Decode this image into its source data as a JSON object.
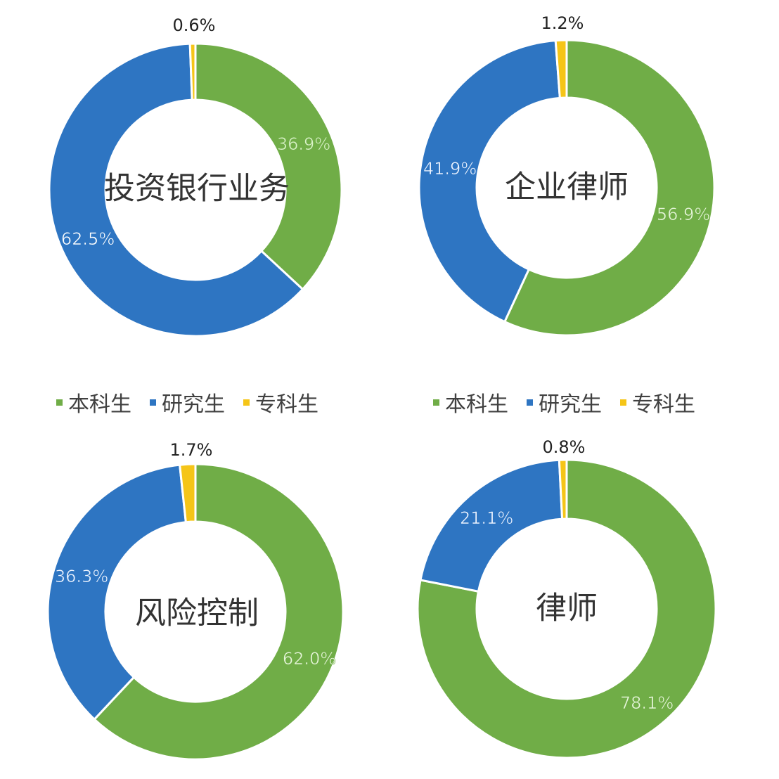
{
  "colors": {
    "本科生": "#70AD47",
    "研究生": "#2E75C2",
    "专科生": "#F5C518"
  },
  "legend": {
    "items": [
      "本科生",
      "研究生",
      "专科生"
    ]
  },
  "chart_data": [
    {
      "type": "pie",
      "title": "投资银行业务",
      "categories": [
        "本科生",
        "研究生",
        "专科生"
      ],
      "values": [
        36.9,
        62.5,
        0.6
      ],
      "labels": [
        "36.9%",
        "62.5%",
        "0.6%"
      ]
    },
    {
      "type": "pie",
      "title": "企业律师",
      "categories": [
        "本科生",
        "研究生",
        "专科生"
      ],
      "values": [
        56.9,
        41.9,
        1.2
      ],
      "labels": [
        "56.9%",
        "41.9%",
        "1.2%"
      ]
    },
    {
      "type": "pie",
      "title": "风险控制",
      "categories": [
        "本科生",
        "研究生",
        "专科生"
      ],
      "values": [
        62.0,
        36.3,
        1.7
      ],
      "labels": [
        "62.0%",
        "36.3%",
        "1.7%"
      ]
    },
    {
      "type": "pie",
      "title": "律师",
      "categories": [
        "本科生",
        "研究生",
        "专科生"
      ],
      "values": [
        78.1,
        21.1,
        0.8
      ],
      "labels": [
        "78.1%",
        "21.1%",
        "0.8%"
      ]
    }
  ]
}
